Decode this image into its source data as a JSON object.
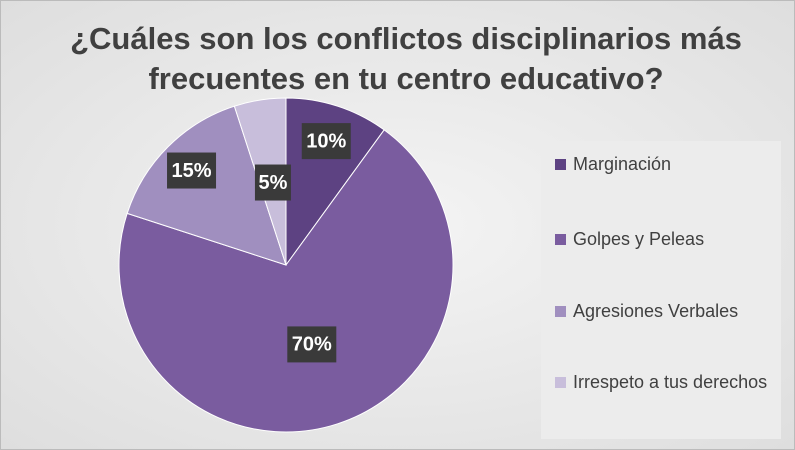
{
  "chart_data": {
    "type": "pie",
    "title": "¿Cuáles son los conflictos disciplinarios más frecuentes en tu centro educativo?",
    "categories": [
      "Marginación",
      "Golpes y Peleas",
      "Agresiones Verbales",
      "Irrespeto a tus derechos"
    ],
    "values": [
      10,
      70,
      15,
      5
    ],
    "value_labels": [
      "10%",
      "70%",
      "15%",
      "5%"
    ],
    "colors": [
      "#5d4282",
      "#7a5c9f",
      "#a08fbf",
      "#c8bedb"
    ],
    "legend": "right"
  }
}
